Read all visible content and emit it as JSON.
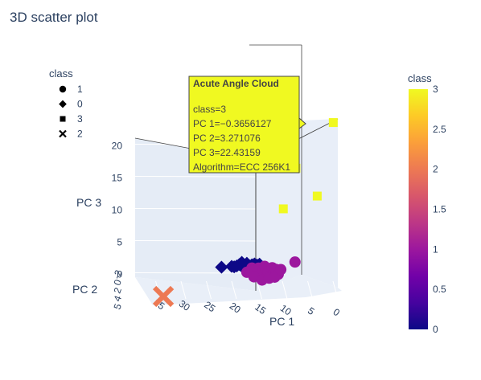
{
  "chart_data": {
    "type": "scatter",
    "title": "3D scatter plot",
    "axes": {
      "x": {
        "label": "PC 1",
        "ticks": [
          "35",
          "30",
          "25",
          "20",
          "15",
          "10",
          "5",
          "0"
        ],
        "range": [
          0,
          37
        ]
      },
      "y": {
        "label": "PC 2",
        "ticks": [
          "-2",
          "0",
          "2",
          "4",
          "5"
        ]
      },
      "z": {
        "label": "PC 3",
        "ticks": [
          "0",
          "5",
          "10",
          "15",
          "20"
        ],
        "range": [
          -2,
          23
        ]
      }
    },
    "legend": {
      "title": "class",
      "entries": [
        {
          "symbol": "circle",
          "label": "1"
        },
        {
          "symbol": "diamond",
          "label": "0"
        },
        {
          "symbol": "square",
          "label": "3"
        },
        {
          "symbol": "x",
          "label": "2"
        }
      ]
    },
    "colorbar": {
      "title": "class",
      "range": [
        0,
        3
      ],
      "ticks": [
        "3",
        "2.5",
        "2",
        "1.5",
        "1",
        "0.5",
        "0"
      ],
      "tick_values": [
        3,
        2.5,
        2,
        1.5,
        1,
        0.5,
        0
      ],
      "colors": [
        "#0d0887",
        "#46039f",
        "#7201a8",
        "#9c179e",
        "#bd3786",
        "#d8576b",
        "#ed7953",
        "#fb9f3a",
        "#fdca26",
        "#f0f921"
      ]
    },
    "series": [
      {
        "class": 0,
        "symbol": "diamond",
        "color": "#0d0887",
        "points": [
          [
            22,
            0,
            0.3
          ],
          [
            20,
            0,
            0.3
          ],
          [
            19.5,
            0,
            0.2
          ],
          [
            19,
            0,
            0.3
          ],
          [
            18.5,
            0,
            0.5
          ],
          [
            18,
            0,
            0.2
          ],
          [
            17.5,
            0,
            0.4
          ],
          [
            17,
            0,
            0.3
          ],
          [
            16.5,
            0,
            0.2
          ],
          [
            16,
            0,
            0.3
          ],
          [
            15.5,
            0,
            0.4
          ],
          [
            15,
            0,
            0.2
          ],
          [
            14.5,
            0,
            0.3
          ],
          [
            18,
            0,
            0.8
          ],
          [
            17,
            0,
            0.6
          ]
        ]
      },
      {
        "class": 1,
        "symbol": "circle",
        "color": "#9c179e",
        "points": [
          [
            17,
            0,
            -0.8
          ],
          [
            16.2,
            0,
            -0.9
          ],
          [
            16,
            0,
            -0.2
          ],
          [
            15.5,
            0,
            -0.5
          ],
          [
            15,
            0,
            -1.1
          ],
          [
            14.7,
            0,
            -0.3
          ],
          [
            14.3,
            0,
            -1.3
          ],
          [
            13.8,
            0,
            -0.8
          ],
          [
            13.5,
            0,
            -0.1
          ],
          [
            13.2,
            0,
            -0.6
          ],
          [
            12.8,
            0,
            -1.0
          ],
          [
            12.4,
            0,
            -1.6
          ],
          [
            12,
            0,
            -0.4
          ],
          [
            11.7,
            0,
            -1.2
          ],
          [
            11.3,
            0,
            -0.7
          ],
          [
            10.8,
            0,
            -1.5
          ],
          [
            15.6,
            0,
            -1.6
          ],
          [
            14,
            0,
            -2.2
          ],
          [
            12.6,
            0,
            -2.0
          ],
          [
            11.5,
            0,
            -1.9
          ],
          [
            10.3,
            0,
            -0.8
          ],
          [
            7.5,
            0,
            0.2
          ]
        ]
      },
      {
        "class": 2,
        "symbol": "x",
        "color": "#ed7953",
        "points": [
          [
            33,
            5,
            -2
          ]
        ]
      },
      {
        "class": 3,
        "symbol": "square",
        "color": "#f0f921",
        "points": [
          [
            -0.3656127,
            3.271076,
            22.43159
          ],
          [
            7,
            3.3,
            15.8
          ],
          [
            9.5,
            3.2,
            9.6
          ],
          [
            2.8,
            3.3,
            11.2
          ]
        ]
      }
    ],
    "hover": {
      "header": "Acute Angle Cloud",
      "lines": [
        "class=3",
        "PC 1=−0.3656127",
        "PC 2=3.271076",
        "PC 3=22.43159",
        "Algorithm=ECC 256K1"
      ],
      "bg_color": "#f0f921"
    }
  }
}
